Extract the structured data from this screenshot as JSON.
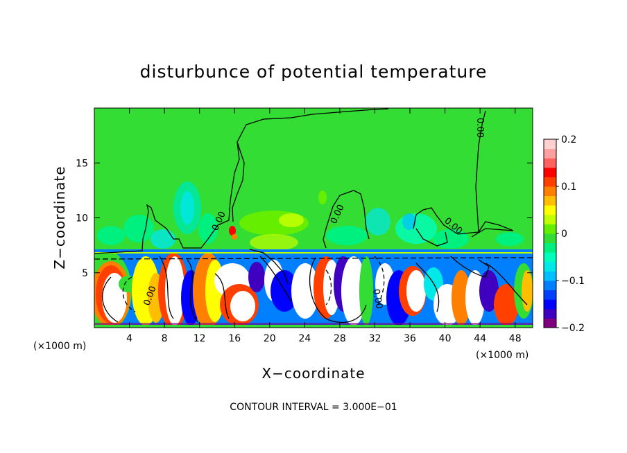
{
  "chart_data": {
    "type": "heatmap",
    "title": "disturbunce of potential temperature",
    "xlabel": "X−coordinate",
    "ylabel": "Z−coordinate",
    "x_unit_left": "(×1000 m)",
    "x_unit_right": "(×1000 m)",
    "xlim": [
      0,
      50
    ],
    "ylim": [
      0,
      20
    ],
    "x_ticks": [
      4,
      8,
      12,
      16,
      20,
      24,
      28,
      32,
      36,
      40,
      44,
      48
    ],
    "x_tick_labels": [
      "4",
      "8",
      "12",
      "16",
      "20",
      "24",
      "28",
      "32",
      "36",
      "40",
      "44",
      "48"
    ],
    "y_ticks": [
      5,
      10,
      15
    ],
    "y_tick_labels": [
      "5",
      "10",
      "15"
    ],
    "colorbar": {
      "range": [
        -0.2,
        0.2
      ],
      "ticks": [
        0.2,
        0.1,
        0,
        -0.1,
        -0.2
      ],
      "tick_labels": [
        "0.2",
        "0.1",
        "0",
        "−0.1",
        "−0.2"
      ],
      "colors": [
        "#7f007f",
        "#3f00bf",
        "#0000ff",
        "#0040ff",
        "#0080ff",
        "#00bfff",
        "#00e8e8",
        "#00ffbf",
        "#00f07f",
        "#33dd33",
        "#66ee00",
        "#bfff00",
        "#ffff00",
        "#ffbf00",
        "#ff8000",
        "#ff4000",
        "#ff0000",
        "#ff6060",
        "#ffa0a0",
        "#ffd0d0"
      ]
    },
    "background_value": 0,
    "inversion_height": 7,
    "contour_labels": [
      "0.00",
      "0.00",
      "0.00",
      "0.00",
      "0.00",
      "0.00"
    ],
    "contour_interval_text": "CONTOUR INTERVAL = 3.000E−01"
  }
}
